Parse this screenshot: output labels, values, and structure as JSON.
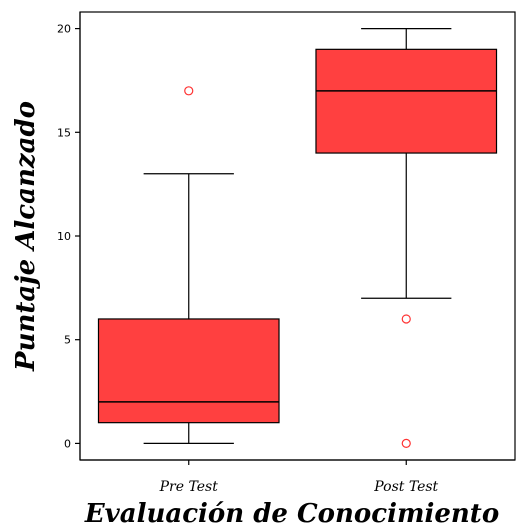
{
  "chart_data": {
    "type": "box",
    "title": "",
    "xlabel": "Evaluación de Conocimiento",
    "ylabel": "Puntaje Alcanzado",
    "ylim": [
      -0.8,
      20.8
    ],
    "yticks": [
      0,
      5,
      10,
      15,
      20
    ],
    "grid": false,
    "categories": [
      "Pre Test",
      "Post Test"
    ],
    "boxes": [
      {
        "category": "Pre Test",
        "min": 0,
        "q1": 1,
        "median": 2,
        "q3": 6,
        "max": 13,
        "outliers": [
          17
        ]
      },
      {
        "category": "Post Test",
        "min": 7,
        "q1": 14,
        "median": 17,
        "q3": 19,
        "max": 20,
        "outliers": [
          6,
          0
        ]
      }
    ],
    "box_color": "#ff4040",
    "outlier_color": "#ff3333"
  }
}
